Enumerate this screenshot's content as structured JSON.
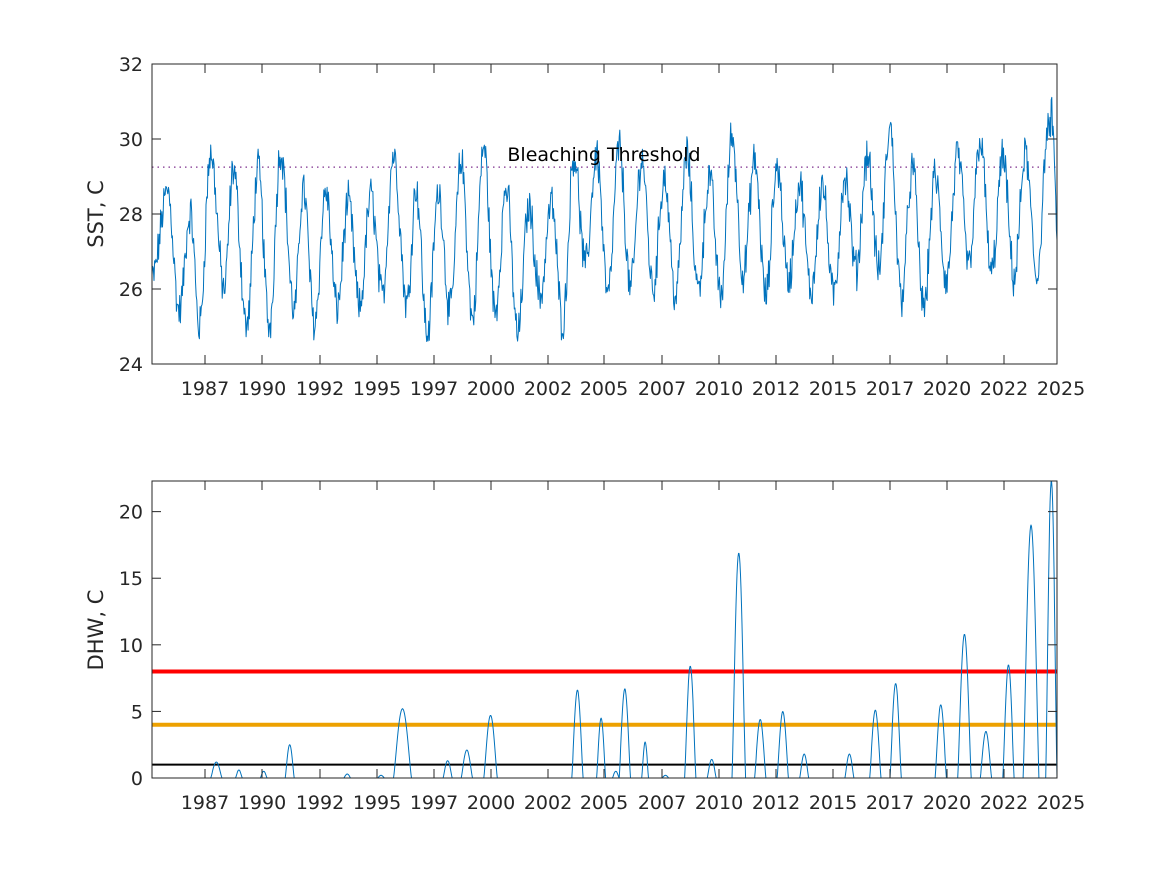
{
  "chart_data": [
    {
      "type": "line",
      "ylabel": "SST, C",
      "ylim": [
        24,
        32
      ],
      "yticks": [
        24,
        26,
        28,
        30,
        32
      ],
      "xlim": [
        1985.0,
        2025.1
      ],
      "xtick_labels": [
        "1987",
        "1990",
        "1992",
        "1995",
        "1997",
        "2000",
        "2002",
        "2005",
        "2007",
        "2010",
        "2012",
        "2015",
        "2017",
        "2020",
        "2022",
        "2025"
      ],
      "grid": false,
      "series_color": "#0072BD",
      "threshold": {
        "value": 29.25,
        "label": "Bleaching Threshold",
        "color": "#7E2F8E",
        "style": "dotted"
      },
      "seasonal_extremes": [
        {
          "t": 1985.0,
          "y": 26.3
        },
        {
          "t": 1985.7,
          "y": 28.6
        },
        {
          "t": 1986.2,
          "y": 25.4
        },
        {
          "t": 1986.7,
          "y": 28.0
        },
        {
          "t": 1987.1,
          "y": 25.0
        },
        {
          "t": 1987.6,
          "y": 29.6
        },
        {
          "t": 1988.2,
          "y": 26.0
        },
        {
          "t": 1988.6,
          "y": 29.2
        },
        {
          "t": 1989.2,
          "y": 25.0
        },
        {
          "t": 1989.7,
          "y": 29.2
        },
        {
          "t": 1990.2,
          "y": 25.0
        },
        {
          "t": 1990.7,
          "y": 29.7
        },
        {
          "t": 1991.3,
          "y": 25.4
        },
        {
          "t": 1991.7,
          "y": 28.7
        },
        {
          "t": 1992.2,
          "y": 25.1
        },
        {
          "t": 1992.7,
          "y": 28.6
        },
        {
          "t": 1993.2,
          "y": 25.5
        },
        {
          "t": 1993.7,
          "y": 28.3
        },
        {
          "t": 1994.2,
          "y": 25.5
        },
        {
          "t": 1994.7,
          "y": 28.5
        },
        {
          "t": 1995.2,
          "y": 25.8
        },
        {
          "t": 1995.7,
          "y": 29.6
        },
        {
          "t": 1996.3,
          "y": 25.6
        },
        {
          "t": 1996.7,
          "y": 28.7
        },
        {
          "t": 1997.2,
          "y": 24.8
        },
        {
          "t": 1997.7,
          "y": 28.6
        },
        {
          "t": 1998.2,
          "y": 25.4
        },
        {
          "t": 1998.7,
          "y": 29.4
        },
        {
          "t": 1999.2,
          "y": 25.2
        },
        {
          "t": 1999.7,
          "y": 29.8
        },
        {
          "t": 2000.2,
          "y": 25.4
        },
        {
          "t": 2000.7,
          "y": 28.7
        },
        {
          "t": 2001.2,
          "y": 24.8
        },
        {
          "t": 2001.7,
          "y": 28.2
        },
        {
          "t": 2002.2,
          "y": 25.8
        },
        {
          "t": 2002.7,
          "y": 28.3
        },
        {
          "t": 2003.2,
          "y": 25.1
        },
        {
          "t": 2003.7,
          "y": 29.6
        },
        {
          "t": 2004.2,
          "y": 26.6
        },
        {
          "t": 2004.7,
          "y": 29.6
        },
        {
          "t": 2005.2,
          "y": 25.8
        },
        {
          "t": 2005.7,
          "y": 29.8
        },
        {
          "t": 2006.2,
          "y": 26.0
        },
        {
          "t": 2006.7,
          "y": 29.5
        },
        {
          "t": 2007.2,
          "y": 26.0
        },
        {
          "t": 2007.7,
          "y": 29.0
        },
        {
          "t": 2008.2,
          "y": 25.8
        },
        {
          "t": 2008.7,
          "y": 29.6
        },
        {
          "t": 2009.2,
          "y": 26.0
        },
        {
          "t": 2009.7,
          "y": 29.0
        },
        {
          "t": 2010.2,
          "y": 25.8
        },
        {
          "t": 2010.7,
          "y": 30.1
        },
        {
          "t": 2011.2,
          "y": 26.4
        },
        {
          "t": 2011.7,
          "y": 29.4
        },
        {
          "t": 2012.2,
          "y": 25.8
        },
        {
          "t": 2012.7,
          "y": 29.3
        },
        {
          "t": 2013.2,
          "y": 26.2
        },
        {
          "t": 2013.7,
          "y": 28.8
        },
        {
          "t": 2014.2,
          "y": 25.9
        },
        {
          "t": 2014.7,
          "y": 28.8
        },
        {
          "t": 2015.2,
          "y": 25.8
        },
        {
          "t": 2015.7,
          "y": 29.0
        },
        {
          "t": 2016.2,
          "y": 26.5
        },
        {
          "t": 2016.7,
          "y": 29.6
        },
        {
          "t": 2017.2,
          "y": 26.5
        },
        {
          "t": 2017.7,
          "y": 30.3
        },
        {
          "t": 2018.2,
          "y": 25.8
        },
        {
          "t": 2018.7,
          "y": 29.2
        },
        {
          "t": 2019.2,
          "y": 25.5
        },
        {
          "t": 2019.7,
          "y": 29.0
        },
        {
          "t": 2020.2,
          "y": 26.2
        },
        {
          "t": 2020.7,
          "y": 29.6
        },
        {
          "t": 2021.2,
          "y": 26.6
        },
        {
          "t": 2021.7,
          "y": 30.0
        },
        {
          "t": 2022.2,
          "y": 26.4
        },
        {
          "t": 2022.7,
          "y": 29.5
        },
        {
          "t": 2023.2,
          "y": 26.3
        },
        {
          "t": 2023.7,
          "y": 29.6
        },
        {
          "t": 2024.2,
          "y": 26.3
        },
        {
          "t": 2024.7,
          "y": 30.2
        },
        {
          "t": 2024.9,
          "y": 30.6
        },
        {
          "t": 2025.1,
          "y": 27.3
        }
      ]
    },
    {
      "type": "line",
      "ylabel": "DHW, C",
      "ylim": [
        0,
        22.3
      ],
      "yticks": [
        0,
        5,
        10,
        15,
        20
      ],
      "xlim": [
        1985.0,
        2025.1
      ],
      "xtick_labels": [
        "1987",
        "1990",
        "1992",
        "1995",
        "1997",
        "2000",
        "2002",
        "2005",
        "2007",
        "2010",
        "2012",
        "2015",
        "2017",
        "2020",
        "2022",
        "2025"
      ],
      "grid": false,
      "series_color": "#0072BD",
      "reference_lines": [
        {
          "value": 8,
          "color": "#FF0000"
        },
        {
          "value": 4,
          "color": "#EDA100"
        },
        {
          "value": 1,
          "color": "#000000"
        }
      ],
      "events": [
        {
          "start": 1987.6,
          "end": 1988.1,
          "peak": 1.2
        },
        {
          "start": 1988.7,
          "end": 1989.0,
          "peak": 0.6
        },
        {
          "start": 1989.8,
          "end": 1990.1,
          "peak": 0.5
        },
        {
          "start": 1990.9,
          "end": 1991.3,
          "peak": 2.5
        },
        {
          "start": 1993.5,
          "end": 1993.8,
          "peak": 0.3
        },
        {
          "start": 1995.0,
          "end": 1995.3,
          "peak": 0.2
        },
        {
          "start": 1995.7,
          "end": 1996.5,
          "peak": 5.2
        },
        {
          "start": 1997.9,
          "end": 1998.3,
          "peak": 1.3
        },
        {
          "start": 1998.7,
          "end": 1999.2,
          "peak": 2.1
        },
        {
          "start": 1999.7,
          "end": 2000.3,
          "peak": 4.7
        },
        {
          "start": 2003.6,
          "end": 2004.1,
          "peak": 6.6
        },
        {
          "start": 2004.7,
          "end": 2005.1,
          "peak": 4.5
        },
        {
          "start": 2005.4,
          "end": 2005.7,
          "peak": 0.5
        },
        {
          "start": 2005.7,
          "end": 2006.2,
          "peak": 6.7
        },
        {
          "start": 2006.7,
          "end": 2007.0,
          "peak": 2.7
        },
        {
          "start": 2007.6,
          "end": 2007.9,
          "peak": 0.2
        },
        {
          "start": 2008.6,
          "end": 2009.1,
          "peak": 8.4
        },
        {
          "start": 2009.6,
          "end": 2010.0,
          "peak": 1.4
        },
        {
          "start": 2010.7,
          "end": 2011.3,
          "peak": 16.9
        },
        {
          "start": 2011.7,
          "end": 2012.2,
          "peak": 4.4
        },
        {
          "start": 2012.7,
          "end": 2013.2,
          "peak": 5.0
        },
        {
          "start": 2013.7,
          "end": 2014.1,
          "peak": 1.8
        },
        {
          "start": 2015.7,
          "end": 2016.1,
          "peak": 1.8
        },
        {
          "start": 2016.8,
          "end": 2017.3,
          "peak": 5.1
        },
        {
          "start": 2017.7,
          "end": 2018.2,
          "peak": 7.1
        },
        {
          "start": 2019.7,
          "end": 2020.2,
          "peak": 5.5
        },
        {
          "start": 2020.7,
          "end": 2021.3,
          "peak": 10.8
        },
        {
          "start": 2021.7,
          "end": 2022.2,
          "peak": 3.5
        },
        {
          "start": 2022.7,
          "end": 2023.2,
          "peak": 8.5
        },
        {
          "start": 2023.6,
          "end": 2024.3,
          "peak": 19.0
        },
        {
          "start": 2024.6,
          "end": 2025.1,
          "peak": 22.3
        }
      ]
    }
  ]
}
